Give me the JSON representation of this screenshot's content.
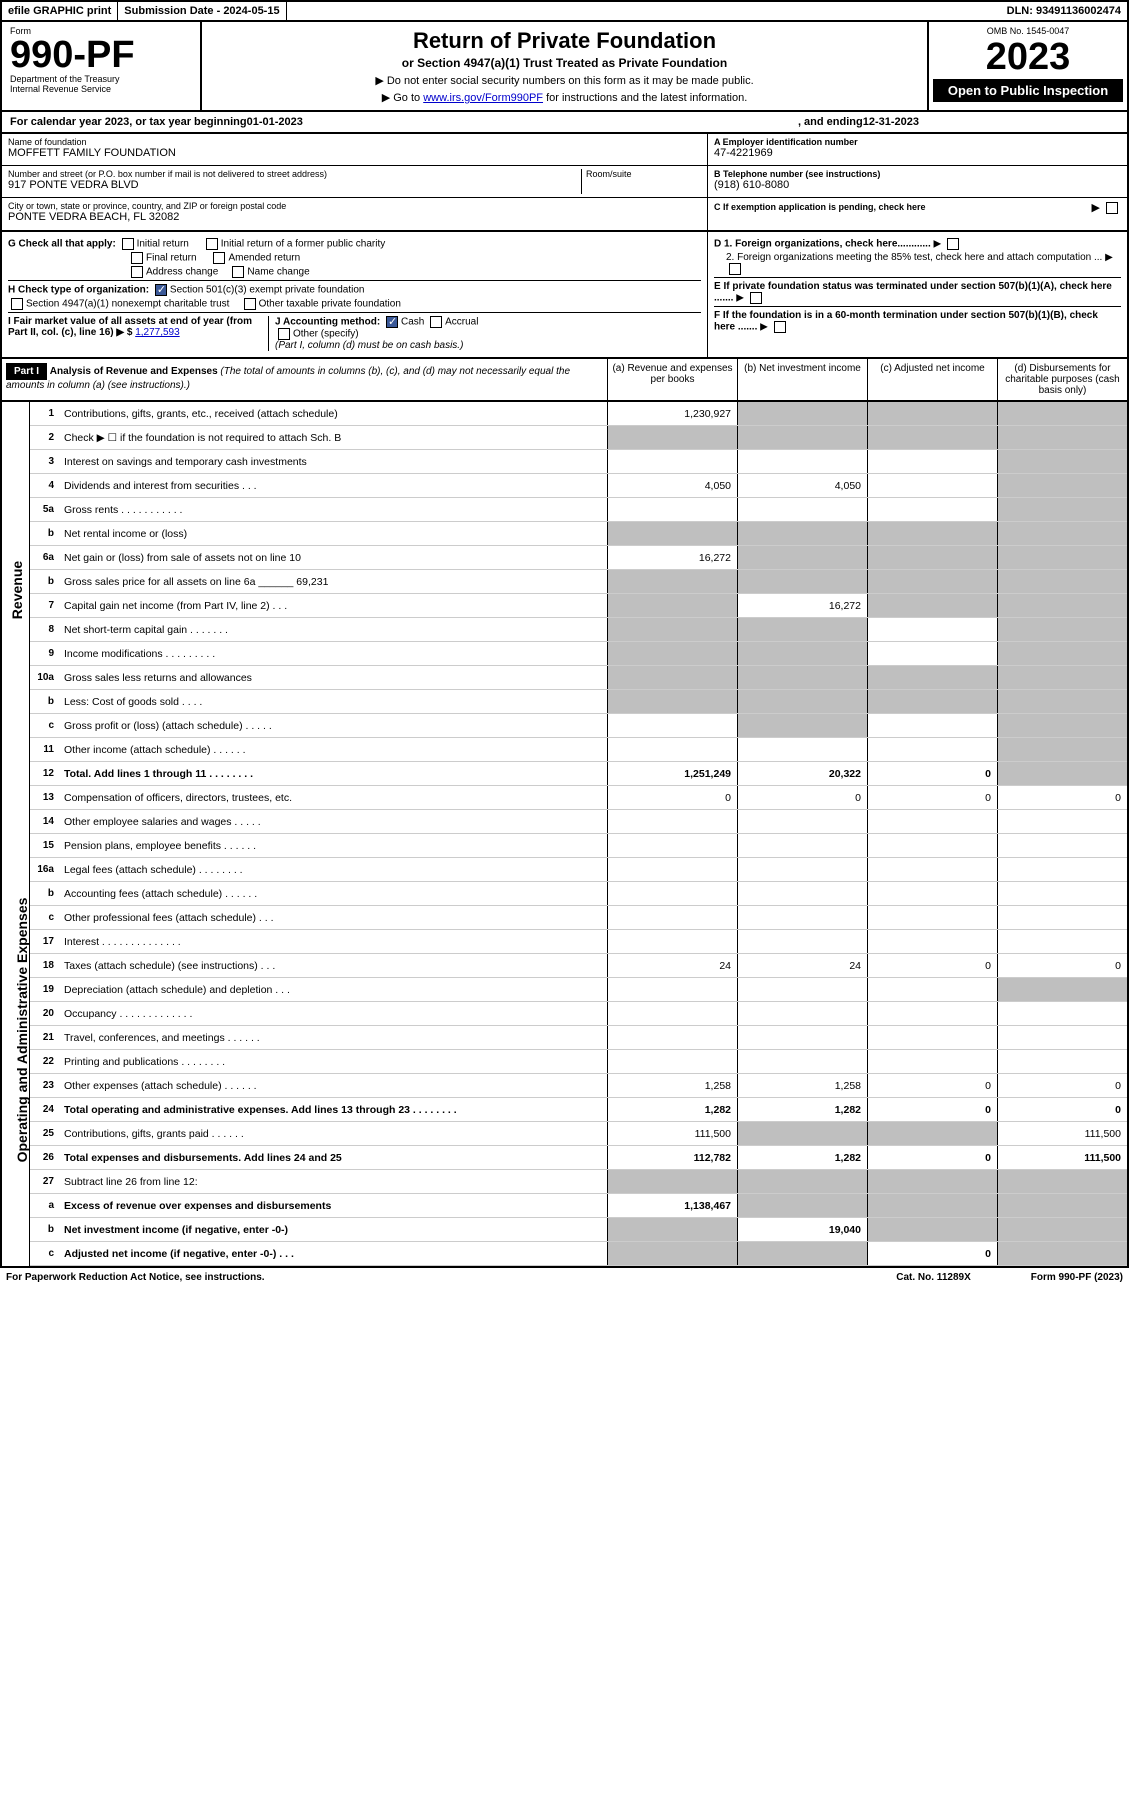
{
  "topbar": {
    "efile": "efile GRAPHIC print",
    "submission": "Submission Date - 2024-05-15",
    "dln": "DLN: 93491136002474"
  },
  "header": {
    "form_label": "Form",
    "form_number": "990-PF",
    "dept": "Department of the Treasury",
    "irs": "Internal Revenue Service",
    "title": "Return of Private Foundation",
    "subtitle": "or Section 4947(a)(1) Trust Treated as Private Foundation",
    "note1": "▶ Do not enter social security numbers on this form as it may be made public.",
    "note2_pre": "▶ Go to ",
    "note2_link": "www.irs.gov/Form990PF",
    "note2_post": " for instructions and the latest information.",
    "omb": "OMB No. 1545-0047",
    "year": "2023",
    "open": "Open to Public Inspection"
  },
  "cal_year": {
    "pre": "For calendar year 2023, or tax year beginning ",
    "begin": "01-01-2023",
    "mid": ", and ending ",
    "end": "12-31-2023"
  },
  "entity": {
    "name_label": "Name of foundation",
    "name": "MOFFETT FAMILY FOUNDATION",
    "addr_label": "Number and street (or P.O. box number if mail is not delivered to street address)",
    "addr": "917 PONTE VEDRA BLVD",
    "room_label": "Room/suite",
    "city_label": "City or town, state or province, country, and ZIP or foreign postal code",
    "city": "PONTE VEDRA BEACH, FL  32082",
    "a_label": "A Employer identification number",
    "ein": "47-4221969",
    "b_label": "B Telephone number (see instructions)",
    "phone": "(918) 610-8080",
    "c_label": "C If exemption application is pending, check here"
  },
  "checks": {
    "g_label": "G Check all that apply:",
    "g_initial": "Initial return",
    "g_initial_former": "Initial return of a former public charity",
    "g_final": "Final return",
    "g_amended": "Amended return",
    "g_address": "Address change",
    "g_name": "Name change",
    "h_label": "H Check type of organization:",
    "h_501c3": "Section 501(c)(3) exempt private foundation",
    "h_4947": "Section 4947(a)(1) nonexempt charitable trust",
    "h_other": "Other taxable private foundation",
    "i_label": "I Fair market value of all assets at end of year (from Part II, col. (c), line 16) ▶ $",
    "i_value": "1,277,593",
    "j_label": "J Accounting method:",
    "j_cash": "Cash",
    "j_accrual": "Accrual",
    "j_other": "Other (specify)",
    "j_note": "(Part I, column (d) must be on cash basis.)",
    "d1": "D 1. Foreign organizations, check here............",
    "d2": "2. Foreign organizations meeting the 85% test, check here and attach computation ...",
    "e": "E  If private foundation status was terminated under section 507(b)(1)(A), check here .......",
    "f": "F  If the foundation is in a 60-month termination under section 507(b)(1)(B), check here ......."
  },
  "part1": {
    "label": "Part I",
    "title": "Analysis of Revenue and Expenses",
    "note": "(The total of amounts in columns (b), (c), and (d) may not necessarily equal the amounts in column (a) (see instructions).)",
    "col_a": "(a) Revenue and expenses per books",
    "col_b": "(b) Net investment income",
    "col_c": "(c) Adjusted net income",
    "col_d": "(d) Disbursements for charitable purposes (cash basis only)"
  },
  "side": {
    "revenue": "Revenue",
    "expenses": "Operating and Administrative Expenses"
  },
  "rows": [
    {
      "n": "1",
      "l": "Contributions, gifts, grants, etc., received (attach schedule)",
      "a": "1,230,927",
      "b": "",
      "c": "",
      "d": "",
      "gb": true,
      "gc": true,
      "gd": true
    },
    {
      "n": "2",
      "l": "Check ▶ ☐ if the foundation is not required to attach Sch. B",
      "a": "",
      "b": "",
      "c": "",
      "d": "",
      "ga": true,
      "gb": true,
      "gc": true,
      "gd": true
    },
    {
      "n": "3",
      "l": "Interest on savings and temporary cash investments",
      "a": "",
      "b": "",
      "c": "",
      "d": "",
      "gd": true
    },
    {
      "n": "4",
      "l": "Dividends and interest from securities  .  .  .",
      "a": "4,050",
      "b": "4,050",
      "c": "",
      "d": "",
      "gd": true
    },
    {
      "n": "5a",
      "l": "Gross rents  .  .  .  .  .  .  .  .  .  .  .",
      "a": "",
      "b": "",
      "c": "",
      "d": "",
      "gd": true
    },
    {
      "n": "b",
      "l": "Net rental income or (loss)",
      "a": "",
      "b": "",
      "c": "",
      "d": "",
      "ga": true,
      "gb": true,
      "gc": true,
      "gd": true
    },
    {
      "n": "6a",
      "l": "Net gain or (loss) from sale of assets not on line 10",
      "a": "16,272",
      "b": "",
      "c": "",
      "d": "",
      "gb": true,
      "gc": true,
      "gd": true
    },
    {
      "n": "b",
      "l": "Gross sales price for all assets on line 6a ______ 69,231",
      "a": "",
      "b": "",
      "c": "",
      "d": "",
      "ga": true,
      "gb": true,
      "gc": true,
      "gd": true
    },
    {
      "n": "7",
      "l": "Capital gain net income (from Part IV, line 2)  .  .  .",
      "a": "",
      "b": "16,272",
      "c": "",
      "d": "",
      "ga": true,
      "gc": true,
      "gd": true
    },
    {
      "n": "8",
      "l": "Net short-term capital gain  .  .  .  .  .  .  .",
      "a": "",
      "b": "",
      "c": "",
      "d": "",
      "ga": true,
      "gb": true,
      "gd": true
    },
    {
      "n": "9",
      "l": "Income modifications  .  .  .  .  .  .  .  .  .",
      "a": "",
      "b": "",
      "c": "",
      "d": "",
      "ga": true,
      "gb": true,
      "gd": true
    },
    {
      "n": "10a",
      "l": "Gross sales less returns and allowances",
      "a": "",
      "b": "",
      "c": "",
      "d": "",
      "ga": true,
      "gb": true,
      "gc": true,
      "gd": true
    },
    {
      "n": "b",
      "l": "Less: Cost of goods sold  .  .  .  .",
      "a": "",
      "b": "",
      "c": "",
      "d": "",
      "ga": true,
      "gb": true,
      "gc": true,
      "gd": true
    },
    {
      "n": "c",
      "l": "Gross profit or (loss) (attach schedule)  .  .  .  .  .",
      "a": "",
      "b": "",
      "c": "",
      "d": "",
      "gb": true,
      "gd": true
    },
    {
      "n": "11",
      "l": "Other income (attach schedule)  .  .  .  .  .  .",
      "a": "",
      "b": "",
      "c": "",
      "d": "",
      "gd": true
    },
    {
      "n": "12",
      "l": "Total. Add lines 1 through 11  .  .  .  .  .  .  .  .",
      "a": "1,251,249",
      "b": "20,322",
      "c": "0",
      "d": "",
      "bold": true,
      "gd": true
    },
    {
      "n": "13",
      "l": "Compensation of officers, directors, trustees, etc.",
      "a": "0",
      "b": "0",
      "c": "0",
      "d": "0"
    },
    {
      "n": "14",
      "l": "Other employee salaries and wages  .  .  .  .  .",
      "a": "",
      "b": "",
      "c": "",
      "d": ""
    },
    {
      "n": "15",
      "l": "Pension plans, employee benefits  .  .  .  .  .  .",
      "a": "",
      "b": "",
      "c": "",
      "d": ""
    },
    {
      "n": "16a",
      "l": "Legal fees (attach schedule)  .  .  .  .  .  .  .  .",
      "a": "",
      "b": "",
      "c": "",
      "d": ""
    },
    {
      "n": "b",
      "l": "Accounting fees (attach schedule)  .  .  .  .  .  .",
      "a": "",
      "b": "",
      "c": "",
      "d": ""
    },
    {
      "n": "c",
      "l": "Other professional fees (attach schedule)  .  .  .",
      "a": "",
      "b": "",
      "c": "",
      "d": ""
    },
    {
      "n": "17",
      "l": "Interest  .  .  .  .  .  .  .  .  .  .  .  .  .  .",
      "a": "",
      "b": "",
      "c": "",
      "d": ""
    },
    {
      "n": "18",
      "l": "Taxes (attach schedule) (see instructions)  .  .  .",
      "a": "24",
      "b": "24",
      "c": "0",
      "d": "0"
    },
    {
      "n": "19",
      "l": "Depreciation (attach schedule) and depletion  .  .  .",
      "a": "",
      "b": "",
      "c": "",
      "d": "",
      "gd": true
    },
    {
      "n": "20",
      "l": "Occupancy  .  .  .  .  .  .  .  .  .  .  .  .  .",
      "a": "",
      "b": "",
      "c": "",
      "d": ""
    },
    {
      "n": "21",
      "l": "Travel, conferences, and meetings  .  .  .  .  .  .",
      "a": "",
      "b": "",
      "c": "",
      "d": ""
    },
    {
      "n": "22",
      "l": "Printing and publications  .  .  .  .  .  .  .  .",
      "a": "",
      "b": "",
      "c": "",
      "d": ""
    },
    {
      "n": "23",
      "l": "Other expenses (attach schedule)  .  .  .  .  .  .",
      "a": "1,258",
      "b": "1,258",
      "c": "0",
      "d": "0"
    },
    {
      "n": "24",
      "l": "Total operating and administrative expenses. Add lines 13 through 23  .  .  .  .  .  .  .  .",
      "a": "1,282",
      "b": "1,282",
      "c": "0",
      "d": "0",
      "bold": true
    },
    {
      "n": "25",
      "l": "Contributions, gifts, grants paid  .  .  .  .  .  .",
      "a": "111,500",
      "b": "",
      "c": "",
      "d": "111,500",
      "gb": true,
      "gc": true
    },
    {
      "n": "26",
      "l": "Total expenses and disbursements. Add lines 24 and 25",
      "a": "112,782",
      "b": "1,282",
      "c": "0",
      "d": "111,500",
      "bold": true
    },
    {
      "n": "27",
      "l": "Subtract line 26 from line 12:",
      "a": "",
      "b": "",
      "c": "",
      "d": "",
      "ga": true,
      "gb": true,
      "gc": true,
      "gd": true
    },
    {
      "n": "a",
      "l": "Excess of revenue over expenses and disbursements",
      "a": "1,138,467",
      "b": "",
      "c": "",
      "d": "",
      "bold": true,
      "gb": true,
      "gc": true,
      "gd": true
    },
    {
      "n": "b",
      "l": "Net investment income (if negative, enter -0-)",
      "a": "",
      "b": "19,040",
      "c": "",
      "d": "",
      "bold": true,
      "ga": true,
      "gc": true,
      "gd": true
    },
    {
      "n": "c",
      "l": "Adjusted net income (if negative, enter -0-)  .  .  .",
      "a": "",
      "b": "",
      "c": "0",
      "d": "",
      "bold": true,
      "ga": true,
      "gb": true,
      "gd": true
    }
  ],
  "footer": {
    "left": "For Paperwork Reduction Act Notice, see instructions.",
    "cat": "Cat. No. 11289X",
    "form": "Form 990-PF (2023)"
  }
}
